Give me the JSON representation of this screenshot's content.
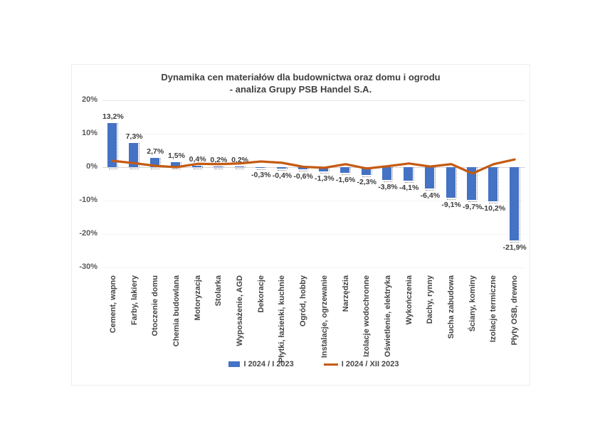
{
  "title": {
    "line1": "Dynamika cen materiałów dla budownictwa oraz domu i ogrodu",
    "line2": "- analiza Grupy PSB Handel S.A."
  },
  "chart_data": {
    "type": "bar",
    "title": "Dynamika cen materiałów dla budownictwa oraz domu i ogrodu - analiza Grupy PSB Handel S.A.",
    "categories": [
      "Cement, wapno",
      "Farby, lakiery",
      "Otoczenie domu",
      "Chemia budowlana",
      "Motoryzacja",
      "Stolarka",
      "Wyposażenie, AGD",
      "Dekoracje",
      "Płytki, łazienki, kuchnie",
      "Ogród, hobby",
      "Instalacje, ogrzewanie",
      "Narzędzia",
      "Izolacje wodochronne",
      "Oświetlenie, elektryka",
      "Wykończenia",
      "Dachy, rynny",
      "Sucha zabudowa",
      "Ściany, kominy",
      "Izolacje termiczne",
      "Płyty OSB, drewno"
    ],
    "series": [
      {
        "name": "I 2024 / I 2023",
        "type": "bar",
        "color": "#4472C4",
        "values": [
          13.2,
          7.3,
          2.7,
          1.5,
          0.4,
          0.2,
          0.2,
          -0.3,
          -0.4,
          -0.6,
          -1.3,
          -1.6,
          -2.3,
          -3.8,
          -4.1,
          -6.4,
          -9.1,
          -9.7,
          -10.2,
          -21.9
        ],
        "value_labels": [
          "13,2%",
          "7,3%",
          "2,7%",
          "1,5%",
          "0,4%",
          "0,2%",
          "0,2%",
          "-0,3%",
          "-0,4%",
          "-0,6%",
          "-1,3%",
          "-1,6%",
          "-2,3%",
          "-3,8%",
          "-4,1%",
          "-6,4%",
          "-9,1%",
          "-9,7%",
          "-10,2%",
          "-21,9%"
        ]
      },
      {
        "name": "I 2024 / XII 2023",
        "type": "line",
        "color": "#C55A11",
        "values": [
          1.9,
          1.2,
          0.4,
          0.0,
          1.0,
          0.9,
          1.1,
          1.7,
          1.3,
          0.1,
          -0.2,
          0.9,
          -0.4,
          0.3,
          1.1,
          0.2,
          0.9,
          -1.9,
          0.9,
          2.3
        ]
      }
    ],
    "ylim": [
      -30,
      20
    ],
    "yticks": [
      "20%",
      "10%",
      "0%",
      "-10%",
      "-20%",
      "-30%"
    ],
    "ytick_values": [
      20,
      10,
      0,
      -10,
      -20,
      -30
    ],
    "grid": "horizontal-minimal",
    "legend_position": "bottom",
    "xlabel": "",
    "ylabel": ""
  }
}
